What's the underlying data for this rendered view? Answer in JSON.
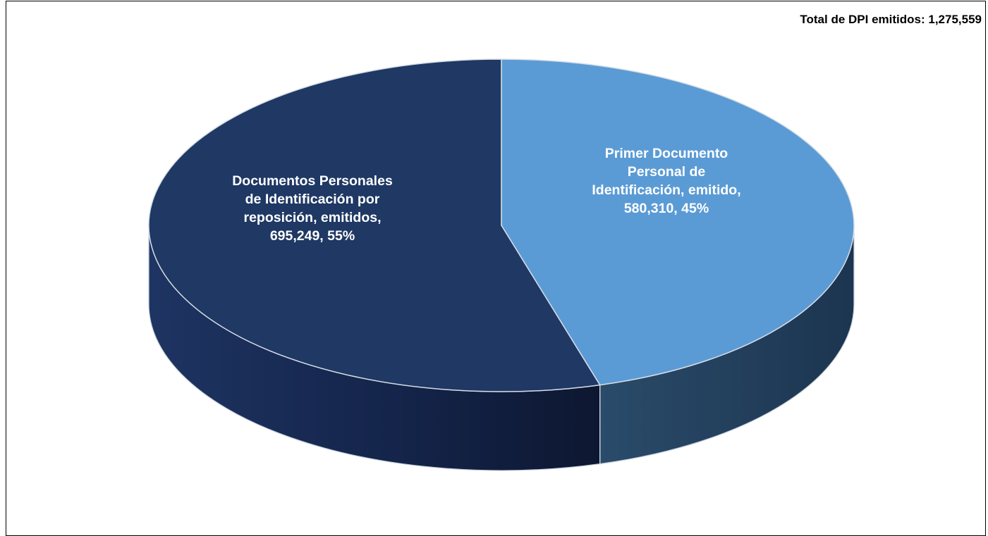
{
  "chart_data": {
    "type": "pie",
    "style": "3d",
    "total_label": "Total de DPI emitidos: 1,275,559",
    "slices": [
      {
        "label_lines": [
          "Primer Documento",
          "Personal de",
          "Identificación, emitido,",
          "580,310, 45%"
        ],
        "value": 580310,
        "percent": 45,
        "color": "#5B9BD5",
        "side_color": "#23405A"
      },
      {
        "label_lines": [
          "Documentos Personales",
          "de Identificación por",
          "reposición, emitidos,",
          "695,249, 55%"
        ],
        "value": 695249,
        "percent": 55,
        "color": "#1F3864",
        "side_color": "#16264A"
      }
    ]
  }
}
